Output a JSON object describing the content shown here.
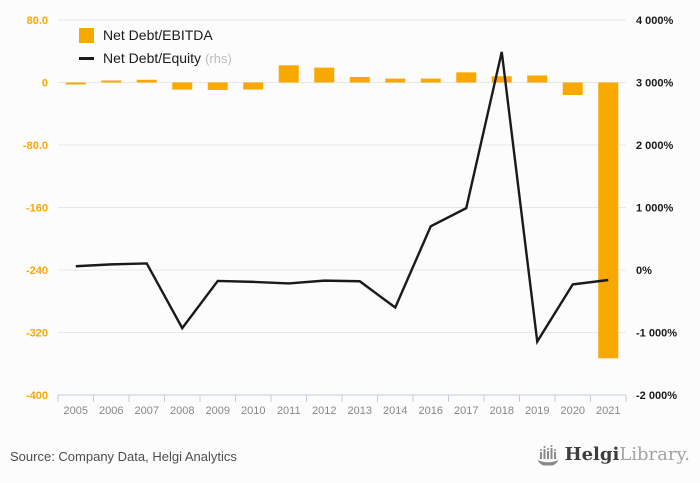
{
  "legend": {
    "items": [
      {
        "label": "Net Debt/EBITDA",
        "type": "bar",
        "color": "#F9A800"
      },
      {
        "label": "Net Debt/Equity",
        "suffix": "(rhs)",
        "type": "line",
        "color": "#1a1a1a"
      }
    ]
  },
  "chart_data": {
    "type": "combo-bar-line",
    "categories": [
      "2005",
      "2006",
      "2007",
      "2008",
      "2009",
      "2010",
      "2011",
      "2012",
      "2013",
      "2014",
      "2016",
      "2017",
      "2018",
      "2019",
      "2020",
      "2021"
    ],
    "series": [
      {
        "name": "Net Debt/EBITDA",
        "type": "bar",
        "axis": "left",
        "color": "#F9A800",
        "values": [
          -1,
          2.5,
          3.5,
          -9,
          -9.5,
          -9,
          22,
          19,
          7,
          5,
          5,
          13,
          8,
          9,
          -16,
          -353
        ]
      },
      {
        "name": "Net Debt/Equity",
        "type": "line",
        "axis": "right",
        "color": "#1a1a1a",
        "values": [
          60,
          90,
          105,
          -930,
          -175,
          -190,
          -215,
          -170,
          -180,
          -600,
          700,
          990,
          3490,
          -1145,
          -230,
          -160
        ]
      }
    ],
    "left_axis": {
      "color": "#F9A800",
      "range": [
        -400,
        80
      ],
      "ticks": [
        {
          "label": "80.0",
          "value": 80
        },
        {
          "label": "0",
          "value": 0
        },
        {
          "label": "-80.0",
          "value": -80
        },
        {
          "label": "-160",
          "value": -160
        },
        {
          "label": "-240",
          "value": -240
        },
        {
          "label": "-320",
          "value": -320
        },
        {
          "label": "-400",
          "value": -400
        }
      ]
    },
    "right_axis": {
      "color": "#1a1a1a",
      "range": [
        -2000,
        4000
      ],
      "ticks": [
        {
          "label": "4 000%",
          "value": 4000
        },
        {
          "label": "3 000%",
          "value": 3000
        },
        {
          "label": "2 000%",
          "value": 2000
        },
        {
          "label": "1 000%",
          "value": 1000
        },
        {
          "label": "0%",
          "value": 0
        },
        {
          "label": "-1 000%",
          "value": -1000
        },
        {
          "label": "-2 000%",
          "value": -2000
        }
      ]
    },
    "grid": true,
    "legend_position": "top-left",
    "grid_color": "#e7e7e7",
    "axis_line_color": "#c3cede",
    "category_label_color": "#878787"
  },
  "footer": {
    "source": "Source: Company Data, Helgi Analytics",
    "logo": {
      "brand_bold": "Helgi",
      "brand_light": "Library.",
      "icon": "helgi-ship-icon"
    }
  }
}
